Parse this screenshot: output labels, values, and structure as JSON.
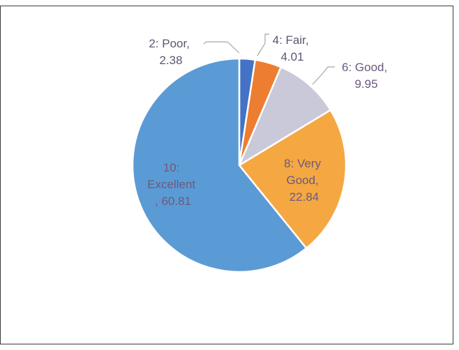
{
  "chart_data": {
    "type": "pie",
    "title": "",
    "categories": [
      "2: Poor",
      "4: Fair",
      "6: Good",
      "8: Very Good",
      "10: Excellent"
    ],
    "values": [
      2.38,
      4.01,
      9.95,
      22.84,
      60.81
    ],
    "colors": [
      "#4472C4",
      "#ED7D31",
      "#C9C9D9",
      "#F5A742",
      "#5B9BD5"
    ],
    "label_color": "#6a5a7e",
    "labels": [
      {
        "line1": "2: Poor,",
        "line2": "2.38"
      },
      {
        "line1": "4: Fair,",
        "line2": "4.01"
      },
      {
        "line1": "6: Good,",
        "line2": "9.95"
      },
      {
        "line1": "8: Very",
        "line2": "Good,",
        "line3": "22.84"
      },
      {
        "line1": "10:",
        "line2": "Excellent",
        "line3": ", 60.81"
      }
    ],
    "legend": "none"
  }
}
